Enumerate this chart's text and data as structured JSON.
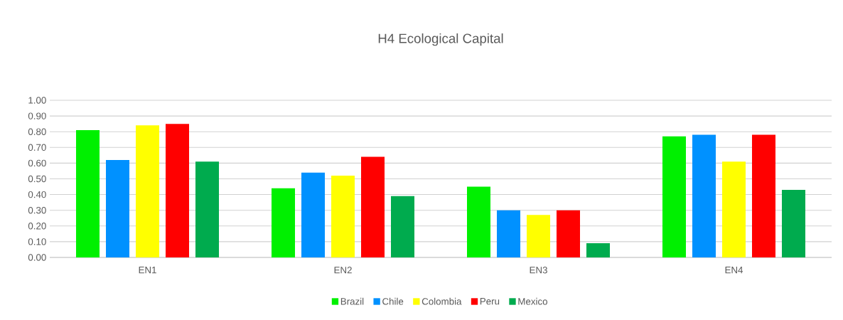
{
  "chart_data": {
    "type": "bar",
    "title": "H4 Ecological Capital",
    "categories": [
      "EN1",
      "EN2",
      "EN3",
      "EN4"
    ],
    "series": [
      {
        "name": "Brazil",
        "color": "#00f000",
        "values": [
          0.81,
          0.44,
          0.45,
          0.77
        ]
      },
      {
        "name": "Chile",
        "color": "#0091ff",
        "values": [
          0.62,
          0.54,
          0.3,
          0.78
        ]
      },
      {
        "name": "Colombia",
        "color": "#ffff00",
        "values": [
          0.84,
          0.52,
          0.27,
          0.61
        ]
      },
      {
        "name": "Peru",
        "color": "#ff0000",
        "values": [
          0.85,
          0.64,
          0.3,
          0.78
        ]
      },
      {
        "name": "Mexico",
        "color": "#00ab4e",
        "values": [
          0.61,
          0.39,
          0.09,
          0.43
        ]
      }
    ],
    "ylim": [
      0,
      1
    ],
    "yticks": [
      {
        "value": 0,
        "label": "0.00"
      },
      {
        "value": 0.1,
        "label": "0.10"
      },
      {
        "value": 0.2,
        "label": "0.20"
      },
      {
        "value": 0.3,
        "label": "0.30"
      },
      {
        "value": 0.4,
        "label": "0.40"
      },
      {
        "value": 0.5,
        "label": "0.50"
      },
      {
        "value": 0.6,
        "label": "0.60"
      },
      {
        "value": 0.7,
        "label": "0.70"
      },
      {
        "value": 0.8,
        "label": "0.80"
      },
      {
        "value": 0.9,
        "label": "0.90"
      },
      {
        "value": 1,
        "label": "1.00"
      }
    ],
    "grid": "y",
    "legend": "bottom"
  }
}
